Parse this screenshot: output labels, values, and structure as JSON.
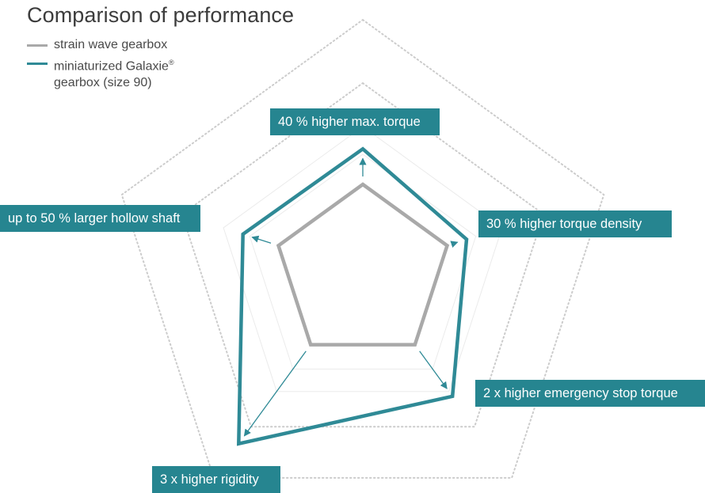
{
  "colors": {
    "baseline": "#a9a9a9",
    "highlight": "#2f8a96",
    "callout_bg": "#268590",
    "frame": "#cccccc",
    "title_text": "#3c3c3c"
  },
  "chart_data": {
    "type": "radar",
    "title": "Comparison of performance",
    "axes": [
      "40 % higher max. torque",
      "30 % higher torque density",
      "2 x higher emergency stop torque",
      "3 x higher rigidity",
      "up to 50 % larger hollow shaft"
    ],
    "series": [
      {
        "name": "strain wave gearbox",
        "values": [
          1,
          1,
          1,
          1,
          1
        ],
        "color": "#a9a9a9"
      },
      {
        "name": "miniaturized Galaxie® gearbox (size 90)",
        "values": [
          1.4,
          1.3,
          2,
          3,
          1.5
        ],
        "color": "#2f8a96"
      }
    ],
    "grid": "dotted pentagon rings",
    "legend": "top-left"
  },
  "legend": [
    {
      "line1": "strain wave gearbox",
      "line2": ""
    },
    {
      "line1": "miniaturized Galaxie",
      "mark": "®",
      "line2": "gearbox (size 90)"
    }
  ]
}
